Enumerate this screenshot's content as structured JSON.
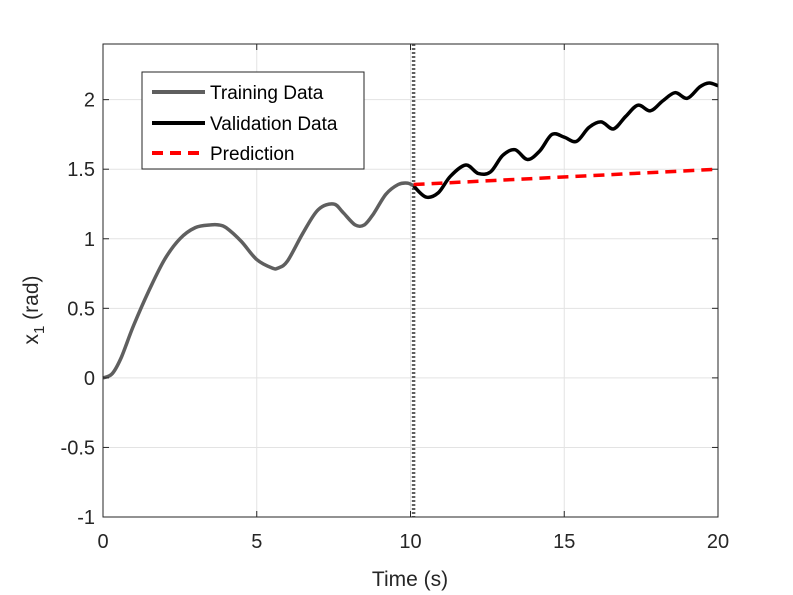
{
  "chart_data": {
    "type": "line",
    "title": "",
    "xlabel": "Time (s)",
    "ylabel_main": "x",
    "ylabel_sub": "1",
    "ylabel_unit": " (rad)",
    "xlim": [
      0,
      20
    ],
    "ylim": [
      -1,
      2.4
    ],
    "grid": true,
    "legend_position": "top-left",
    "xticks": [
      0,
      5,
      10,
      15,
      20
    ],
    "xtick_labels": [
      "0",
      "5",
      "10",
      "15",
      "20"
    ],
    "yticks": [
      -1,
      -0.5,
      0,
      0.5,
      1,
      1.5,
      2
    ],
    "ytick_labels": [
      "-1",
      "-0.5",
      "0",
      "0.5",
      "1",
      "1.5",
      "2"
    ],
    "split_x": 10.1,
    "series": [
      {
        "name": "Training Data",
        "color": "#5f5f5f",
        "style": "solid",
        "x": [
          0,
          0.3,
          0.6,
          1.0,
          1.5,
          2.0,
          2.5,
          3.0,
          3.5,
          3.75,
          4.0,
          4.5,
          5.0,
          5.5,
          5.7,
          6.0,
          6.5,
          7.0,
          7.5,
          7.8,
          8.2,
          8.5,
          8.8,
          9.2,
          9.6,
          9.9,
          10.1
        ],
        "y": [
          0.0,
          0.03,
          0.15,
          0.38,
          0.63,
          0.85,
          1.0,
          1.08,
          1.1,
          1.1,
          1.08,
          0.98,
          0.85,
          0.79,
          0.79,
          0.84,
          1.04,
          1.21,
          1.25,
          1.19,
          1.1,
          1.1,
          1.18,
          1.32,
          1.39,
          1.4,
          1.38
        ]
      },
      {
        "name": "Validation Data",
        "color": "#000000",
        "style": "solid",
        "x": [
          10.1,
          10.5,
          10.9,
          11.3,
          11.8,
          12.2,
          12.6,
          13.0,
          13.4,
          13.8,
          14.2,
          14.6,
          15.0,
          15.4,
          15.8,
          16.2,
          16.6,
          17.0,
          17.4,
          17.8,
          18.2,
          18.6,
          19.0,
          19.4,
          19.7,
          20.0
        ],
        "y": [
          1.38,
          1.3,
          1.33,
          1.45,
          1.53,
          1.47,
          1.48,
          1.6,
          1.64,
          1.57,
          1.63,
          1.75,
          1.73,
          1.7,
          1.8,
          1.84,
          1.79,
          1.88,
          1.96,
          1.92,
          1.99,
          2.05,
          2.01,
          2.09,
          2.12,
          2.1
        ]
      },
      {
        "name": "Prediction",
        "color": "#ff0000",
        "style": "dashed",
        "x": [
          10.1,
          20.0
        ],
        "y": [
          1.39,
          1.5
        ]
      }
    ]
  }
}
